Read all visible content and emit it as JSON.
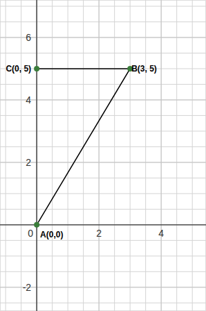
{
  "chart_data": {
    "type": "line",
    "x": [
      0,
      3,
      0
    ],
    "values": [
      0,
      5,
      5
    ],
    "annotations": [
      "A(0,0)",
      "B(3, 5)",
      "C(0, 5)"
    ],
    "color": "#000000",
    "colors": [
      "#3a7d3a",
      "#3a7d3a",
      "#3a7d3a"
    ],
    "marker": "circle",
    "xlim": [
      -1.18,
      5.44
    ],
    "ylim": [
      -2.76,
      7.2
    ],
    "xticks": [
      0,
      2,
      4
    ],
    "yticks": [
      -2,
      2,
      4,
      6
    ],
    "grid": true
  }
}
